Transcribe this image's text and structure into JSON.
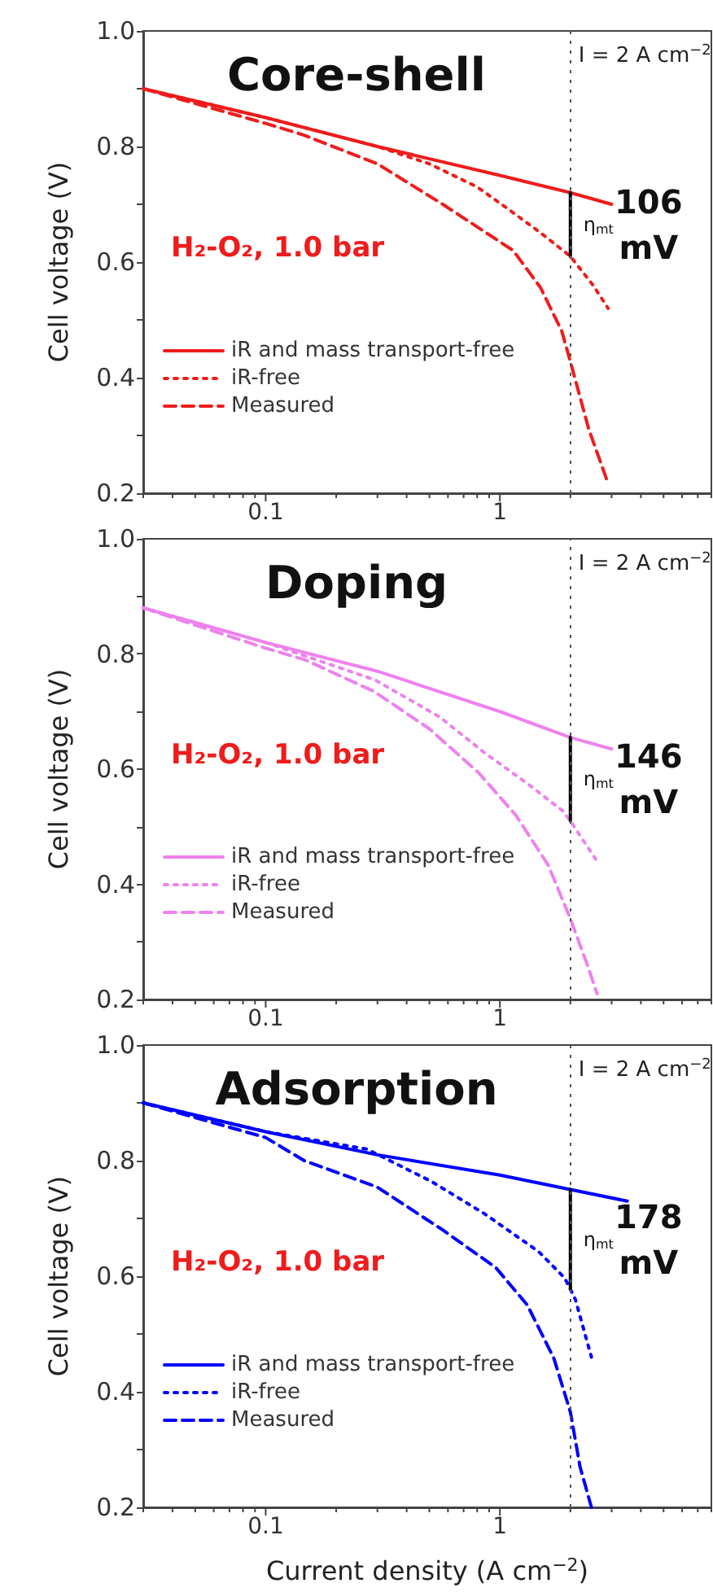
{
  "chart_data": [
    {
      "type": "line",
      "title": "Core-shell",
      "ylabel": "Cell voltage (V)",
      "log": "x",
      "xlim": [
        0.03,
        8
      ],
      "ylim": [
        0.2,
        1.0
      ],
      "xticks": [
        {
          "value": 0.03,
          "label": null
        },
        {
          "value": 0.04,
          "label": null
        },
        {
          "value": 0.05,
          "label": null
        },
        {
          "value": 0.06,
          "label": null
        },
        {
          "value": 0.07,
          "label": null
        },
        {
          "value": 0.08,
          "label": null
        },
        {
          "value": 0.09,
          "label": null
        },
        {
          "value": 0.1,
          "label": "0.1"
        },
        {
          "value": 0.2,
          "label": null
        },
        {
          "value": 0.3,
          "label": null
        },
        {
          "value": 0.4,
          "label": null
        },
        {
          "value": 0.5,
          "label": null
        },
        {
          "value": 0.6,
          "label": null
        },
        {
          "value": 0.7,
          "label": null
        },
        {
          "value": 0.8,
          "label": null
        },
        {
          "value": 0.9,
          "label": null
        },
        {
          "value": 1,
          "label": "1"
        },
        {
          "value": 2,
          "label": null
        },
        {
          "value": 3,
          "label": null
        },
        {
          "value": 4,
          "label": null
        },
        {
          "value": 5,
          "label": null
        },
        {
          "value": 6,
          "label": null
        },
        {
          "value": 7,
          "label": null
        },
        {
          "value": 8,
          "label": null
        }
      ],
      "yticks": [
        {
          "value": 0.2,
          "label": "0.2"
        },
        {
          "value": 0.3,
          "label": null
        },
        {
          "value": 0.4,
          "label": "0.4"
        },
        {
          "value": 0.5,
          "label": null
        },
        {
          "value": 0.6,
          "label": "0.6"
        },
        {
          "value": 0.7,
          "label": null
        },
        {
          "value": 0.8,
          "label": "0.8"
        },
        {
          "value": 0.9,
          "label": null
        },
        {
          "value": 1,
          "label": "1.0"
        }
      ],
      "grid": false,
      "legend": "bottom left",
      "marker": "none",
      "series": [
        {
          "name": "iR and mass transport-free",
          "color": "#ee1c1c",
          "line_style": "solid",
          "x": [
            0.03,
            0.1,
            0.3,
            1,
            2,
            3
          ],
          "values": [
            0.9,
            0.85,
            0.8,
            0.75,
            0.72,
            0.7
          ]
        },
        {
          "name": "iR-free",
          "color": "#ee1c1c",
          "line_style": "dotted",
          "x": [
            0.03,
            0.1,
            0.3,
            0.5,
            0.8,
            1.1,
            1.5,
            2,
            2.5,
            2.9
          ],
          "values": [
            0.9,
            0.85,
            0.8,
            0.77,
            0.73,
            0.69,
            0.65,
            0.61,
            0.56,
            0.52
          ]
        },
        {
          "name": "Measured",
          "color": "#ee1c1c",
          "line_style": "dashed",
          "x": [
            0.03,
            0.1,
            0.145,
            0.3,
            0.57,
            1.14,
            1.49,
            1.84,
            2.04,
            2.4,
            2.88
          ],
          "values": [
            0.9,
            0.84,
            0.82,
            0.77,
            0.7,
            0.62,
            0.556,
            0.48,
            0.415,
            0.31,
            0.22
          ]
        },
        {
          "color": "#000000",
          "line_style": "solid",
          "x": [
            2,
            2
          ],
          "values": [
            0.72,
            0.61
          ]
        }
      ],
      "ref_lines": [
        {
          "axis": "x",
          "value": 2,
          "label": "I = 2 A cm$^{−2}$",
          "color": "#555555",
          "line_style": "dotted"
        }
      ],
      "annotations": [
        "H₂-O₂, 1.0 bar",
        "η$_{mt}$",
        "106 mV"
      ]
    },
    {
      "type": "line",
      "title": "Doping",
      "ylabel": "Cell voltage (V)",
      "log": "x",
      "xlim": [
        0.03,
        8
      ],
      "ylim": [
        0.2,
        1.0
      ],
      "xticks": [
        {
          "value": 0.03,
          "label": null
        },
        {
          "value": 0.04,
          "label": null
        },
        {
          "value": 0.05,
          "label": null
        },
        {
          "value": 0.06,
          "label": null
        },
        {
          "value": 0.07,
          "label": null
        },
        {
          "value": 0.08,
          "label": null
        },
        {
          "value": 0.09,
          "label": null
        },
        {
          "value": 0.1,
          "label": "0.1"
        },
        {
          "value": 0.2,
          "label": null
        },
        {
          "value": 0.3,
          "label": null
        },
        {
          "value": 0.4,
          "label": null
        },
        {
          "value": 0.5,
          "label": null
        },
        {
          "value": 0.6,
          "label": null
        },
        {
          "value": 0.7,
          "label": null
        },
        {
          "value": 0.8,
          "label": null
        },
        {
          "value": 0.9,
          "label": null
        },
        {
          "value": 1,
          "label": "1"
        },
        {
          "value": 2,
          "label": null
        },
        {
          "value": 3,
          "label": null
        },
        {
          "value": 4,
          "label": null
        },
        {
          "value": 5,
          "label": null
        },
        {
          "value": 6,
          "label": null
        },
        {
          "value": 7,
          "label": null
        },
        {
          "value": 8,
          "label": null
        }
      ],
      "yticks": [
        {
          "value": 0.2,
          "label": "0.2"
        },
        {
          "value": 0.3,
          "label": null
        },
        {
          "value": 0.4,
          "label": "0.4"
        },
        {
          "value": 0.5,
          "label": null
        },
        {
          "value": 0.6,
          "label": "0.6"
        },
        {
          "value": 0.7,
          "label": null
        },
        {
          "value": 0.8,
          "label": "0.8"
        },
        {
          "value": 0.9,
          "label": null
        },
        {
          "value": 1,
          "label": "1.0"
        }
      ],
      "grid": false,
      "legend": "bottom left",
      "marker": "none",
      "series": [
        {
          "name": "iR and mass transport-free",
          "color": "#ee82ee",
          "line_style": "solid",
          "x": [
            0.03,
            0.1,
            0.3,
            1,
            2,
            3
          ],
          "values": [
            0.88,
            0.82,
            0.77,
            0.7,
            0.655,
            0.635
          ]
        },
        {
          "name": "iR-free",
          "color": "#ee82ee",
          "line_style": "dotted",
          "x": [
            0.03,
            0.1,
            0.293,
            0.556,
            0.85,
            1.31,
            1.85,
            2,
            2.6
          ],
          "values": [
            0.88,
            0.82,
            0.755,
            0.69,
            0.63,
            0.575,
            0.528,
            0.51,
            0.44
          ]
        },
        {
          "name": "Measured",
          "color": "#ee82ee",
          "line_style": "dashed",
          "x": [
            0.03,
            0.1,
            0.147,
            0.29,
            0.5,
            0.81,
            1.17,
            1.61,
            2,
            2.35,
            2.6
          ],
          "values": [
            0.88,
            0.81,
            0.79,
            0.735,
            0.67,
            0.594,
            0.52,
            0.433,
            0.34,
            0.263,
            0.21
          ]
        },
        {
          "color": "#000000",
          "line_style": "solid",
          "x": [
            2,
            2
          ],
          "values": [
            0.655,
            0.51
          ]
        }
      ],
      "ref_lines": [
        {
          "axis": "x",
          "value": 2,
          "label": "I = 2 A cm$^{−2}$",
          "color": "#555555",
          "line_style": "dotted"
        }
      ],
      "annotations": [
        "H₂-O₂, 1.0 bar",
        "η$_{mt}$",
        "146 mV"
      ]
    },
    {
      "type": "line",
      "title": "Adsorption",
      "ylabel": "Cell voltage (V)",
      "xlabel": "Current density (A cm$^{−2}$)",
      "log": "x",
      "xlim": [
        0.03,
        8
      ],
      "ylim": [
        0.2,
        1.0
      ],
      "xticks": [
        {
          "value": 0.03,
          "label": null
        },
        {
          "value": 0.04,
          "label": null
        },
        {
          "value": 0.05,
          "label": null
        },
        {
          "value": 0.06,
          "label": null
        },
        {
          "value": 0.07,
          "label": null
        },
        {
          "value": 0.08,
          "label": null
        },
        {
          "value": 0.09,
          "label": null
        },
        {
          "value": 0.1,
          "label": "0.1"
        },
        {
          "value": 0.2,
          "label": null
        },
        {
          "value": 0.3,
          "label": null
        },
        {
          "value": 0.4,
          "label": null
        },
        {
          "value": 0.5,
          "label": null
        },
        {
          "value": 0.6,
          "label": null
        },
        {
          "value": 0.7,
          "label": null
        },
        {
          "value": 0.8,
          "label": null
        },
        {
          "value": 0.9,
          "label": null
        },
        {
          "value": 1,
          "label": "1"
        },
        {
          "value": 2,
          "label": null
        },
        {
          "value": 3,
          "label": null
        },
        {
          "value": 4,
          "label": null
        },
        {
          "value": 5,
          "label": null
        },
        {
          "value": 6,
          "label": null
        },
        {
          "value": 7,
          "label": null
        },
        {
          "value": 8,
          "label": null
        }
      ],
      "yticks": [
        {
          "value": 0.2,
          "label": "0.2"
        },
        {
          "value": 0.3,
          "label": null
        },
        {
          "value": 0.4,
          "label": "0.4"
        },
        {
          "value": 0.5,
          "label": null
        },
        {
          "value": 0.6,
          "label": "0.6"
        },
        {
          "value": 0.7,
          "label": null
        },
        {
          "value": 0.8,
          "label": "0.8"
        },
        {
          "value": 0.9,
          "label": null
        },
        {
          "value": 1,
          "label": "1.0"
        }
      ],
      "grid": false,
      "legend": "bottom left",
      "marker": "none",
      "series": [
        {
          "name": "iR and mass transport-free",
          "color": "#0000ff",
          "line_style": "solid",
          "x": [
            0.03,
            0.1,
            0.3,
            1,
            2,
            3.5
          ],
          "values": [
            0.9,
            0.85,
            0.81,
            0.775,
            0.75,
            0.73
          ]
        },
        {
          "name": "iR-free",
          "color": "#0000ff",
          "line_style": "dotted",
          "x": [
            0.03,
            0.1,
            0.27,
            0.51,
            0.86,
            1.46,
            1.89,
            2.1,
            2.46
          ],
          "values": [
            0.9,
            0.85,
            0.82,
            0.764,
            0.708,
            0.643,
            0.597,
            0.56,
            0.46
          ]
        },
        {
          "name": "Measured",
          "color": "#0000ff",
          "line_style": "dashed",
          "x": [
            0.03,
            0.1,
            0.146,
            0.3,
            0.57,
            0.96,
            1.31,
            1.7,
            2,
            2.2,
            2.46
          ],
          "values": [
            0.9,
            0.84,
            0.8,
            0.754,
            0.68,
            0.615,
            0.55,
            0.458,
            0.365,
            0.27,
            0.2
          ]
        },
        {
          "color": "#000000",
          "line_style": "solid",
          "x": [
            2,
            2
          ],
          "values": [
            0.75,
            0.578
          ]
        }
      ],
      "ref_lines": [
        {
          "axis": "x",
          "value": 2,
          "label": "I = 2 A cm$^{−2}$",
          "color": "#555555",
          "line_style": "dotted"
        }
      ],
      "annotations": [
        "H₂-O₂, 1.0 bar",
        "η$_{mt}$",
        "178 mV"
      ]
    }
  ]
}
